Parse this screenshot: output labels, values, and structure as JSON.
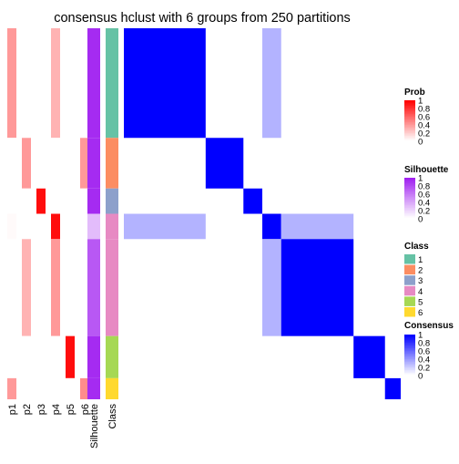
{
  "chart_data": {
    "type": "heatmap",
    "title": "consensus hclust with 6 groups from 250 partitions",
    "annotation_columns": [
      "p1",
      "p2",
      "p3",
      "p4",
      "p5",
      "p6",
      "Silhouette",
      "Class"
    ],
    "sample_groups": [
      {
        "class": 1,
        "share": 0.2955,
        "membership": [
          0.4,
          0,
          0,
          0.3,
          0,
          0
        ],
        "silhouette": 0.95
      },
      {
        "class": 2,
        "share": 0.1364,
        "membership": [
          0,
          0.4,
          0,
          0,
          0,
          0.4
        ],
        "silhouette": 0.95
      },
      {
        "class": 3,
        "share": 0.0682,
        "membership": [
          0,
          0,
          0.95,
          0,
          0,
          0
        ],
        "silhouette": 0.95
      },
      {
        "class": 4,
        "share": 0.0682,
        "membership": [
          0.02,
          0,
          0,
          0.95,
          0,
          0
        ],
        "silhouette": 0.3
      },
      {
        "class": 4,
        "share": 0.2614,
        "membership": [
          0,
          0.3,
          0,
          0.4,
          0,
          0
        ],
        "silhouette": 0.75
      },
      {
        "class": 5,
        "share": 0.1136,
        "membership": [
          0,
          0,
          0,
          0,
          0.95,
          0
        ],
        "silhouette": 0.95
      },
      {
        "class": 6,
        "share": 0.0568,
        "membership": [
          0.4,
          0,
          0,
          0,
          0,
          0.45
        ],
        "silhouette": 0.95
      }
    ],
    "consensus_blocks": [
      {
        "row_group": 0,
        "col_group": 0,
        "value": 1
      },
      {
        "row_group": 0,
        "col_group": 3,
        "value": 0.3
      },
      {
        "row_group": 3,
        "col_group": 0,
        "value": 0.3
      },
      {
        "row_group": 1,
        "col_group": 1,
        "value": 1
      },
      {
        "row_group": 2,
        "col_group": 2,
        "value": 1
      },
      {
        "row_group": 3,
        "col_group": 3,
        "value": 1
      },
      {
        "row_group": 3,
        "col_group": 4,
        "value": 0.3
      },
      {
        "row_group": 4,
        "col_group": 3,
        "value": 0.3
      },
      {
        "row_group": 4,
        "col_group": 4,
        "value": 1
      },
      {
        "row_group": 5,
        "col_group": 5,
        "value": 1
      },
      {
        "row_group": 6,
        "col_group": 6,
        "value": 1
      }
    ],
    "legends": {
      "prob": {
        "title": "Prob",
        "ticks": [
          "1",
          "0.8",
          "0.6",
          "0.4",
          "0.2",
          "0"
        ],
        "high_color": "#ff0000",
        "low_color": "#ffffff"
      },
      "silhouette": {
        "title": "Silhouette",
        "ticks": [
          "1",
          "0.8",
          "0.6",
          "0.4",
          "0.2",
          "0"
        ],
        "high_color": "#a020f0",
        "low_color": "#ffffff"
      },
      "class": {
        "title": "Class",
        "labels": [
          "1",
          "2",
          "3",
          "4",
          "5",
          "6"
        ],
        "colors": [
          "#66c2a5",
          "#fc8d62",
          "#8da0cb",
          "#e78ac3",
          "#a6d854",
          "#ffd92f"
        ]
      },
      "consensus": {
        "title": "Consensus",
        "ticks": [
          "1",
          "0.8",
          "0.6",
          "0.4",
          "0.2",
          "0"
        ],
        "high_color": "#0000ff",
        "low_color": "#ffffff"
      }
    }
  }
}
